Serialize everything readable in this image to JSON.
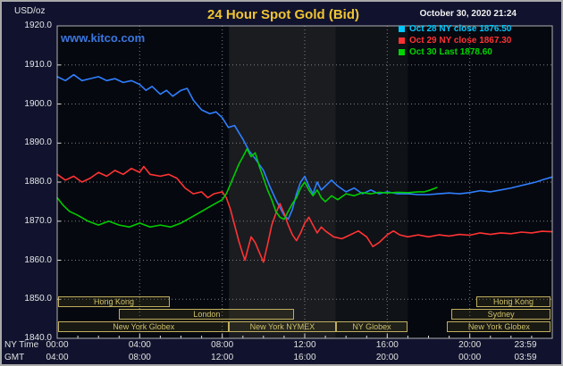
{
  "header": {
    "units_label": "USD/oz",
    "title": "24 Hour Spot Gold (Bid)",
    "datetime": "October 30, 2020 21:24",
    "watermark": "www.kitco.com"
  },
  "colors": {
    "background": "#11132e",
    "plot_background": "#06080f",
    "title": "#f0c432",
    "watermark": "#3a77e0",
    "axis_text": "#e6e6e6",
    "grid": "#808080",
    "session_text": "#cfc06a",
    "session_border": "#bfae5e",
    "blue_series": "#2f7fff",
    "red_series": "#ff3333",
    "green_series": "#00cc00"
  },
  "legend": {
    "items": [
      {
        "label": "Oct 28 NY close 1876.50",
        "color": "#00c8ff"
      },
      {
        "label": "Oct 29 NY close 1867.30",
        "color": "#ff3333"
      },
      {
        "label": "Oct 30 Last 1878.60",
        "color": "#00d500"
      }
    ]
  },
  "axes": {
    "ny_time_label": "NY Time",
    "gmt_label": "GMT",
    "y_ticks": [
      {
        "label": "1920.0",
        "value": 1920
      },
      {
        "label": "1910.0",
        "value": 1910
      },
      {
        "label": "1900.0",
        "value": 1900
      },
      {
        "label": "1890.0",
        "value": 1890
      },
      {
        "label": "1880.0",
        "value": 1880
      },
      {
        "label": "1870.0",
        "value": 1870
      },
      {
        "label": "1860.0",
        "value": 1860
      },
      {
        "label": "1850.0",
        "value": 1850
      },
      {
        "label": "1840.0",
        "value": 1840
      }
    ],
    "x_ticks_ny": [
      {
        "label": "00:00",
        "hour": 0
      },
      {
        "label": "04:00",
        "hour": 4
      },
      {
        "label": "08:00",
        "hour": 8
      },
      {
        "label": "12:00",
        "hour": 12
      },
      {
        "label": "16:00",
        "hour": 16
      },
      {
        "label": "20:00",
        "hour": 20
      },
      {
        "label": "23:59",
        "hour": 23.983
      }
    ],
    "x_ticks_gmt": [
      {
        "label": "04:00",
        "hour": 0
      },
      {
        "label": "08:00",
        "hour": 4
      },
      {
        "label": "12:00",
        "hour": 8
      },
      {
        "label": "16:00",
        "hour": 12
      },
      {
        "label": "20:00",
        "hour": 16
      },
      {
        "label": "00:00",
        "hour": 20
      },
      {
        "label": "03:59",
        "hour": 23.983
      }
    ]
  },
  "sessions": {
    "rows": [
      [
        {
          "label": "Hong Kong",
          "start": 0.05,
          "end": 5.45
        },
        {
          "label": "Hong Kong",
          "start": 20.3,
          "end": 23.93
        }
      ],
      [
        {
          "label": "London",
          "start": 3.0,
          "end": 11.5
        },
        {
          "label": "Sydney",
          "start": 19.1,
          "end": 23.93
        }
      ],
      [
        {
          "label": "New York Globex",
          "start": 0.05,
          "end": 8.33
        },
        {
          "label": "New York NYMEX",
          "start": 8.33,
          "end": 13.5
        },
        {
          "label": "NY Globex",
          "start": 13.5,
          "end": 17.0
        },
        {
          "label": "New York Globex",
          "start": 18.9,
          "end": 23.93
        }
      ]
    ]
  },
  "chart_data": {
    "type": "line",
    "title": "24 Hour Spot Gold (Bid)",
    "x_unit": "NY time (hours)",
    "y_unit": "USD/oz",
    "x_range": [
      0,
      24
    ],
    "y_range": [
      1840,
      1920
    ],
    "y_gridlines": [
      1850,
      1860,
      1870,
      1880,
      1890,
      1900,
      1910
    ],
    "x_gridlines": [
      4,
      8,
      12,
      16,
      20
    ],
    "bands": [
      {
        "start": 8.33,
        "end": 13.5,
        "color": "rgba(205,210,185,0.10)"
      },
      {
        "start": 13.5,
        "end": 17.0,
        "color": "rgba(205,210,185,0.05)"
      }
    ],
    "series": [
      {
        "name": "Oct 28 NY close 1876.50",
        "color": "#2f7fff",
        "points": [
          [
            0,
            1907
          ],
          [
            0.4,
            1906
          ],
          [
            0.8,
            1907.5
          ],
          [
            1.2,
            1906
          ],
          [
            1.6,
            1906.5
          ],
          [
            2,
            1907
          ],
          [
            2.4,
            1906
          ],
          [
            2.8,
            1906.5
          ],
          [
            3.2,
            1905.5
          ],
          [
            3.6,
            1906
          ],
          [
            4,
            1905
          ],
          [
            4.3,
            1903.5
          ],
          [
            4.6,
            1904.5
          ],
          [
            5,
            1902.5
          ],
          [
            5.3,
            1903.5
          ],
          [
            5.6,
            1902
          ],
          [
            6,
            1903.5
          ],
          [
            6.3,
            1904
          ],
          [
            6.6,
            1901
          ],
          [
            7,
            1898.5
          ],
          [
            7.4,
            1897.5
          ],
          [
            7.7,
            1898
          ],
          [
            8,
            1896.5
          ],
          [
            8.3,
            1894
          ],
          [
            8.6,
            1894.5
          ],
          [
            9,
            1891
          ],
          [
            9.3,
            1888
          ],
          [
            9.6,
            1886
          ],
          [
            10,
            1883
          ],
          [
            10.3,
            1879
          ],
          [
            10.6,
            1875.5
          ],
          [
            11,
            1871.5
          ],
          [
            11.2,
            1870.5
          ],
          [
            11.4,
            1873
          ],
          [
            11.6,
            1877
          ],
          [
            11.8,
            1880
          ],
          [
            12,
            1881.5
          ],
          [
            12.2,
            1879
          ],
          [
            12.4,
            1877
          ],
          [
            12.6,
            1880
          ],
          [
            12.8,
            1878
          ],
          [
            13,
            1879
          ],
          [
            13.3,
            1880.5
          ],
          [
            13.6,
            1879
          ],
          [
            14,
            1877.5
          ],
          [
            14.4,
            1878.5
          ],
          [
            14.8,
            1877
          ],
          [
            15.2,
            1878
          ],
          [
            15.6,
            1877
          ],
          [
            16,
            1877.5
          ],
          [
            16.5,
            1877
          ],
          [
            17,
            1877
          ],
          [
            17.5,
            1876.8
          ],
          [
            18,
            1876.8
          ],
          [
            18.5,
            1877
          ],
          [
            19,
            1877.2
          ],
          [
            19.5,
            1877
          ],
          [
            20,
            1877.3
          ],
          [
            20.5,
            1877.8
          ],
          [
            21,
            1877.5
          ],
          [
            21.5,
            1878
          ],
          [
            22,
            1878.5
          ],
          [
            22.4,
            1879
          ],
          [
            22.8,
            1879.5
          ],
          [
            23.2,
            1880
          ],
          [
            23.6,
            1880.7
          ],
          [
            24,
            1881.3
          ]
        ]
      },
      {
        "name": "Oct 29 NY close 1867.30",
        "color": "#ff3333",
        "points": [
          [
            0,
            1882
          ],
          [
            0.4,
            1880.5
          ],
          [
            0.8,
            1881.5
          ],
          [
            1.2,
            1880
          ],
          [
            1.6,
            1881
          ],
          [
            2,
            1882.5
          ],
          [
            2.4,
            1881.5
          ],
          [
            2.8,
            1883
          ],
          [
            3.2,
            1882
          ],
          [
            3.6,
            1883.5
          ],
          [
            4,
            1882.5
          ],
          [
            4.2,
            1884
          ],
          [
            4.5,
            1882
          ],
          [
            5,
            1881.5
          ],
          [
            5.4,
            1882
          ],
          [
            5.8,
            1881
          ],
          [
            6.2,
            1878.5
          ],
          [
            6.6,
            1877
          ],
          [
            7,
            1877.5
          ],
          [
            7.3,
            1876
          ],
          [
            7.6,
            1877
          ],
          [
            8,
            1877.5
          ],
          [
            8.2,
            1876
          ],
          [
            8.4,
            1873
          ],
          [
            8.6,
            1869
          ],
          [
            8.8,
            1865
          ],
          [
            9,
            1861.5
          ],
          [
            9.1,
            1860
          ],
          [
            9.25,
            1863
          ],
          [
            9.4,
            1866
          ],
          [
            9.6,
            1864.5
          ],
          [
            9.8,
            1862
          ],
          [
            10,
            1859.5
          ],
          [
            10.2,
            1864
          ],
          [
            10.4,
            1869
          ],
          [
            10.6,
            1872
          ],
          [
            10.8,
            1874.5
          ],
          [
            11,
            1872
          ],
          [
            11.2,
            1869
          ],
          [
            11.4,
            1866.5
          ],
          [
            11.6,
            1865
          ],
          [
            11.8,
            1867
          ],
          [
            12,
            1869.5
          ],
          [
            12.2,
            1871
          ],
          [
            12.4,
            1869
          ],
          [
            12.6,
            1867
          ],
          [
            12.8,
            1868.5
          ],
          [
            13,
            1867.5
          ],
          [
            13.4,
            1866
          ],
          [
            13.8,
            1865.5
          ],
          [
            14.2,
            1866.5
          ],
          [
            14.6,
            1867.5
          ],
          [
            15,
            1866
          ],
          [
            15.3,
            1863.5
          ],
          [
            15.6,
            1864.5
          ],
          [
            16,
            1866.5
          ],
          [
            16.3,
            1867.5
          ],
          [
            16.6,
            1866.5
          ],
          [
            17,
            1866
          ],
          [
            17.5,
            1866.5
          ],
          [
            18,
            1866
          ],
          [
            18.5,
            1866.5
          ],
          [
            19,
            1866.2
          ],
          [
            19.5,
            1866.6
          ],
          [
            20,
            1866.4
          ],
          [
            20.5,
            1867
          ],
          [
            21,
            1866.6
          ],
          [
            21.5,
            1867
          ],
          [
            22,
            1866.8
          ],
          [
            22.5,
            1867.2
          ],
          [
            23,
            1867
          ],
          [
            23.5,
            1867.4
          ],
          [
            24,
            1867.3
          ]
        ]
      },
      {
        "name": "Oct 30 Last 1878.60",
        "color": "#00cc00",
        "points": [
          [
            0,
            1876
          ],
          [
            0.3,
            1874
          ],
          [
            0.6,
            1872.5
          ],
          [
            1,
            1871.5
          ],
          [
            1.5,
            1870
          ],
          [
            2,
            1869
          ],
          [
            2.5,
            1870
          ],
          [
            3,
            1869
          ],
          [
            3.5,
            1868.5
          ],
          [
            4,
            1869.5
          ],
          [
            4.5,
            1868.5
          ],
          [
            5,
            1869
          ],
          [
            5.5,
            1868.5
          ],
          [
            6,
            1869.5
          ],
          [
            6.5,
            1871
          ],
          [
            7,
            1872.5
          ],
          [
            7.5,
            1874
          ],
          [
            8,
            1875.5
          ],
          [
            8.2,
            1877
          ],
          [
            8.4,
            1879.5
          ],
          [
            8.6,
            1882
          ],
          [
            8.8,
            1884.5
          ],
          [
            9,
            1886.5
          ],
          [
            9.2,
            1888.5
          ],
          [
            9.4,
            1886.5
          ],
          [
            9.6,
            1887.5
          ],
          [
            9.8,
            1884
          ],
          [
            10,
            1881
          ],
          [
            10.2,
            1878
          ],
          [
            10.4,
            1875.5
          ],
          [
            10.6,
            1872.5
          ],
          [
            10.8,
            1871
          ],
          [
            11,
            1870.5
          ],
          [
            11.2,
            1872.5
          ],
          [
            11.4,
            1874.5
          ],
          [
            11.6,
            1876
          ],
          [
            11.8,
            1878.5
          ],
          [
            12,
            1880
          ],
          [
            12.2,
            1878
          ],
          [
            12.4,
            1876.5
          ],
          [
            12.6,
            1878
          ],
          [
            12.8,
            1876
          ],
          [
            13,
            1875
          ],
          [
            13.3,
            1876.5
          ],
          [
            13.6,
            1875.5
          ],
          [
            14,
            1877
          ],
          [
            14.4,
            1876.5
          ],
          [
            14.8,
            1877.3
          ],
          [
            15.2,
            1877
          ],
          [
            15.6,
            1877.4
          ],
          [
            16,
            1877.2
          ],
          [
            16.5,
            1877.4
          ],
          [
            17,
            1877.3
          ],
          [
            17.5,
            1877.5
          ],
          [
            17.8,
            1877.5
          ],
          [
            18.1,
            1878
          ],
          [
            18.4,
            1878.6
          ]
        ]
      }
    ]
  }
}
